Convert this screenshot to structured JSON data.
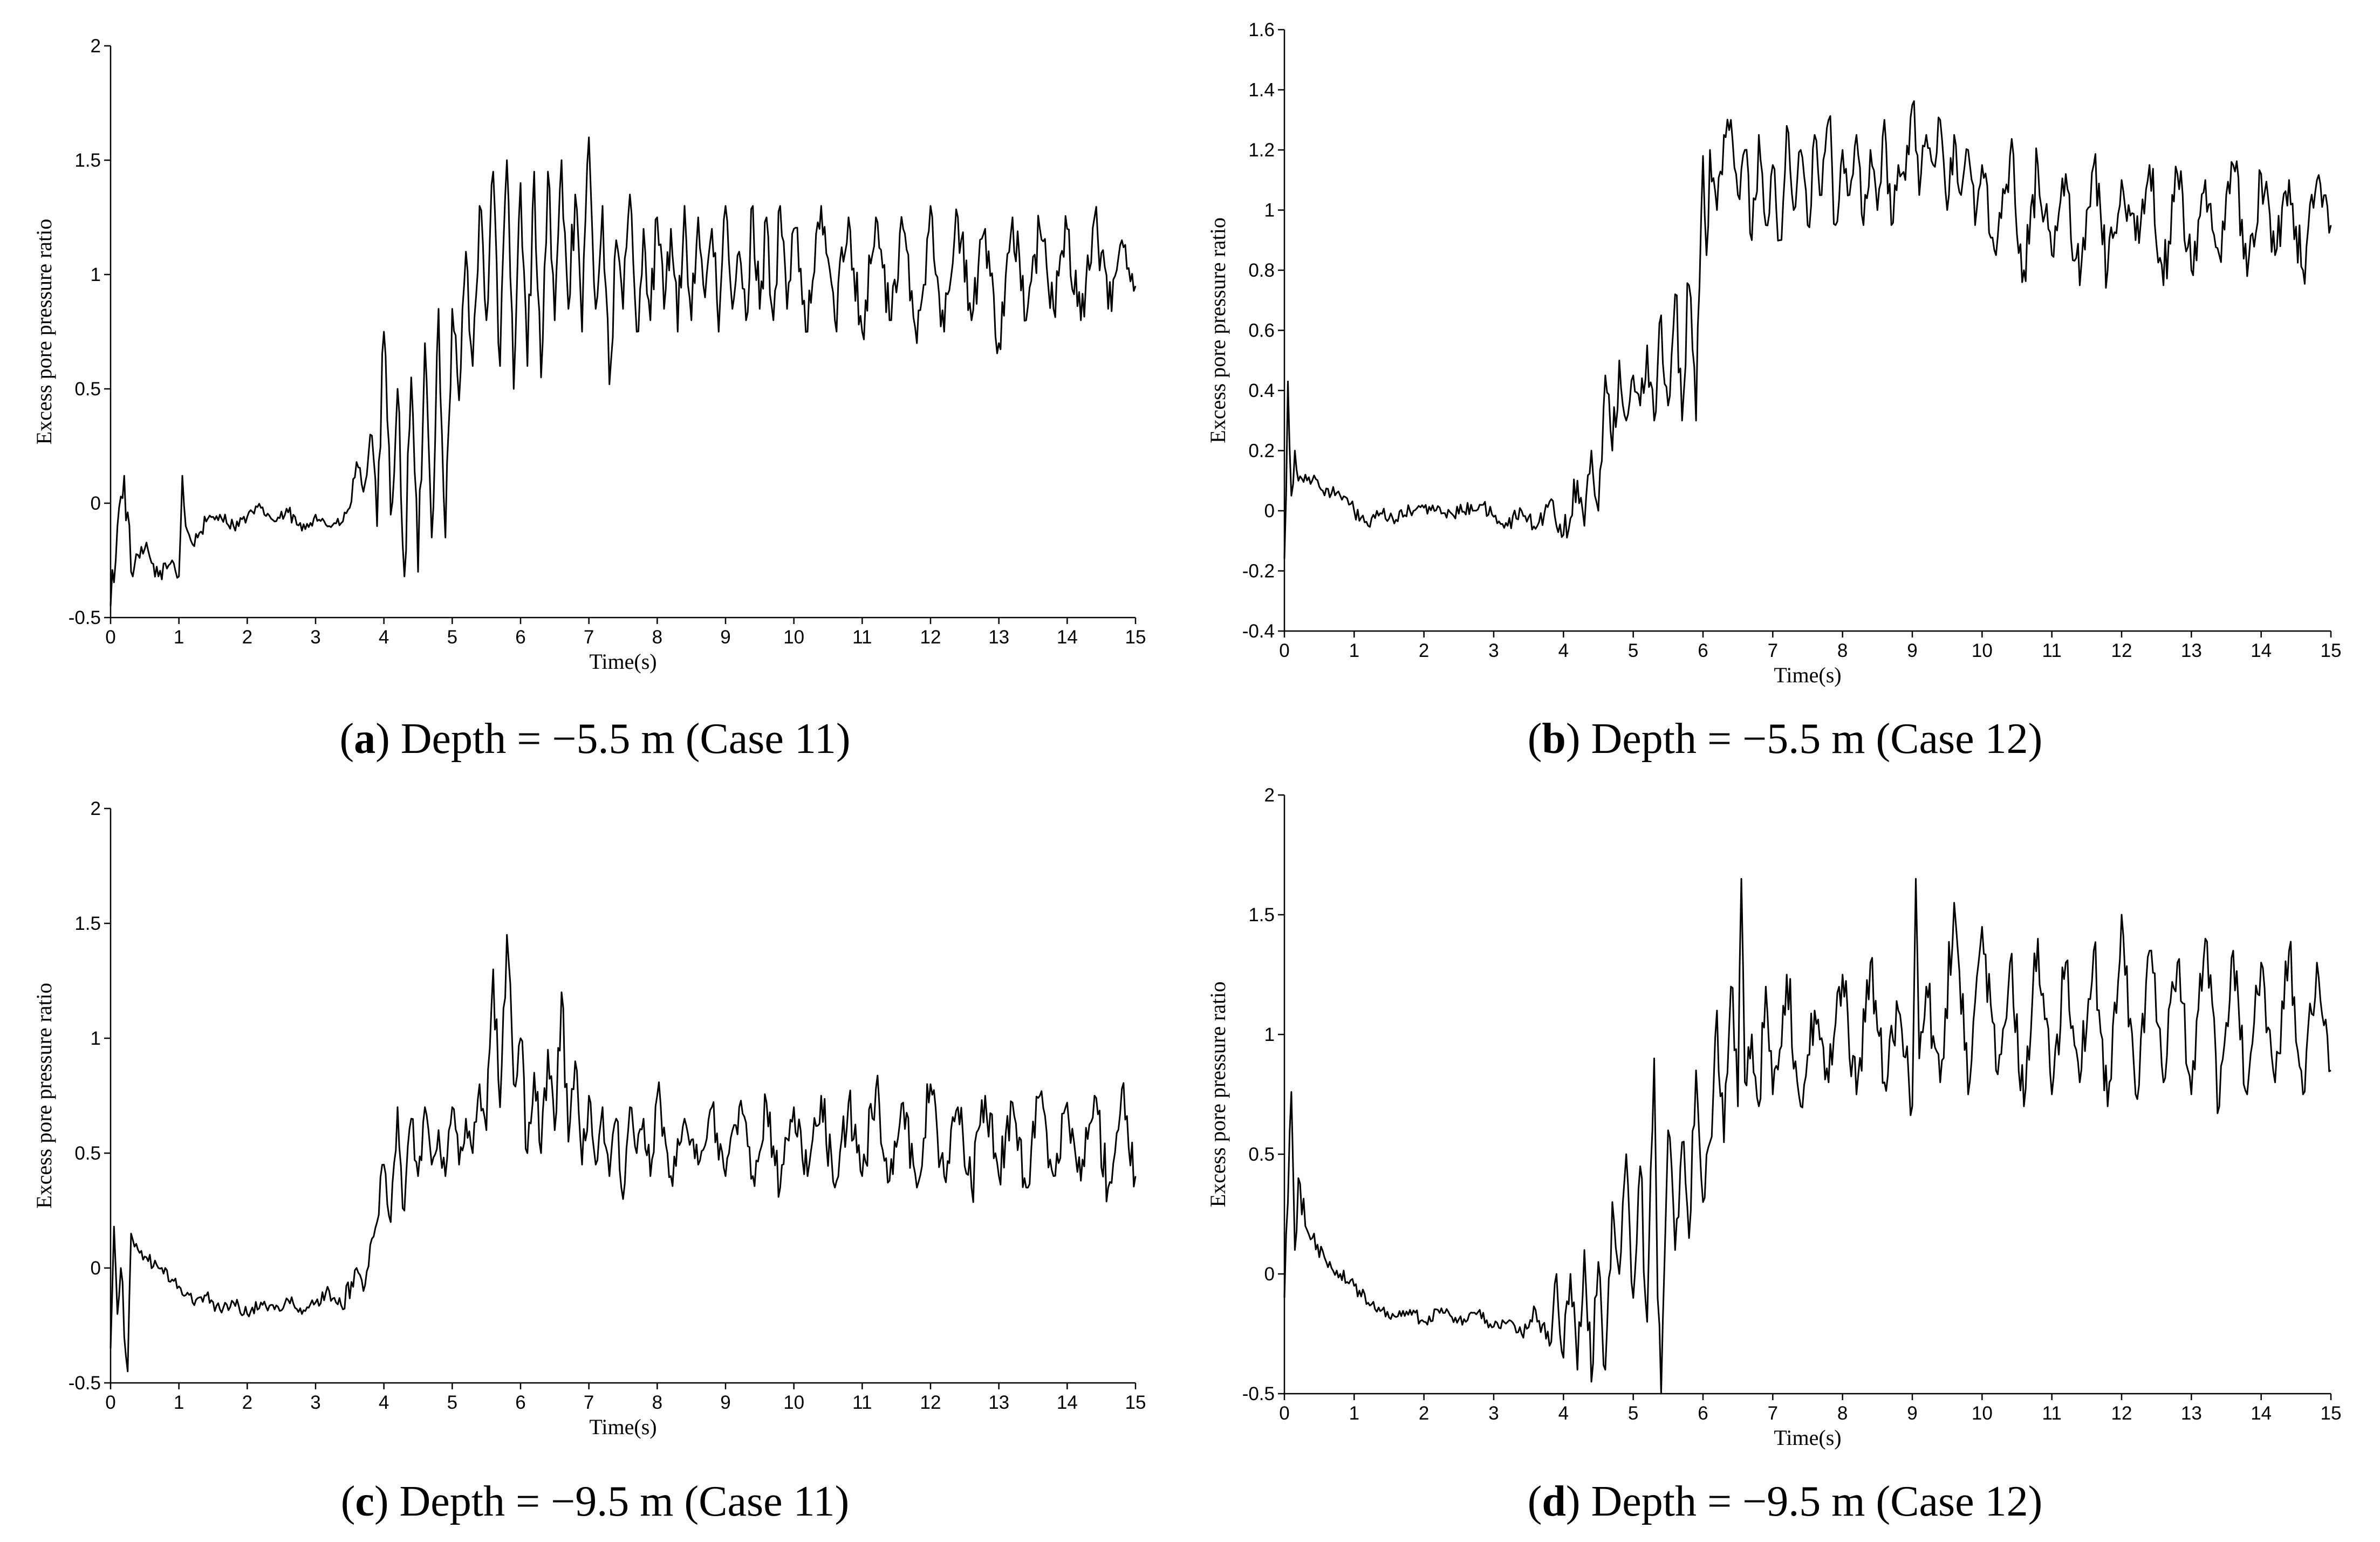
{
  "chart_data": [
    {
      "id": "a",
      "type": "line",
      "caption_letter": "a",
      "caption_text": "Depth = −5.5 m (Case 11)",
      "xlabel": "Time(s)",
      "ylabel": "Excess pore pressure ratio",
      "xlim": [
        0,
        15
      ],
      "ylim": [
        -0.5,
        2
      ],
      "xticks": [
        0,
        1,
        2,
        3,
        4,
        5,
        6,
        7,
        8,
        9,
        10,
        11,
        12,
        13,
        14,
        15
      ],
      "yticks": [
        -0.5,
        0,
        0.5,
        1,
        1.5,
        2
      ],
      "ytick_labels": [
        "-0.5",
        "0",
        "0.5",
        "1",
        "1.5",
        "2"
      ],
      "grid": false,
      "series": [
        {
          "name": "Excess pore pressure ratio",
          "color": "#000000",
          "x": [
            0,
            0.1,
            0.2,
            0.3,
            0.5,
            0.7,
            0.9,
            1.0,
            1.05,
            1.1,
            1.2,
            1.4,
            1.6,
            1.8,
            2.0,
            2.2,
            2.4,
            2.6,
            2.8,
            3.0,
            3.2,
            3.4,
            3.5,
            3.6,
            3.7,
            3.8,
            3.9,
            4.0,
            4.1,
            4.2,
            4.3,
            4.4,
            4.5,
            4.6,
            4.7,
            4.8,
            4.9,
            5.0,
            5.1,
            5.2,
            5.3,
            5.4,
            5.5,
            5.6,
            5.7,
            5.8,
            5.9,
            6.0,
            6.1,
            6.2,
            6.3,
            6.4,
            6.5,
            6.6,
            6.7,
            6.8,
            6.9,
            7.0,
            7.1,
            7.2,
            7.3,
            7.4,
            7.5,
            7.6,
            7.7,
            7.8,
            7.9,
            8.0,
            8.1,
            8.2,
            8.3,
            8.4,
            8.5,
            8.6,
            8.7,
            8.8,
            8.9,
            9.0,
            9.1,
            9.2,
            9.3,
            9.4,
            9.5,
            9.6,
            9.7,
            9.8,
            9.9,
            10.0,
            10.2,
            10.4,
            10.6,
            10.8,
            11.0,
            11.2,
            11.4,
            11.6,
            11.8,
            12.0,
            12.2,
            12.4,
            12.6,
            12.8,
            13.0,
            13.2,
            13.4,
            13.6,
            13.8,
            14.0,
            14.2,
            14.4,
            14.6,
            14.8,
            15.0
          ],
          "y": [
            -0.45,
            -0.1,
            0.12,
            -0.3,
            -0.2,
            -0.32,
            -0.25,
            -0.32,
            0.12,
            -0.1,
            -0.18,
            -0.08,
            -0.05,
            -0.1,
            -0.06,
            -0.02,
            -0.08,
            -0.04,
            -0.12,
            -0.05,
            -0.1,
            -0.08,
            -0.02,
            0.18,
            0.05,
            0.3,
            -0.1,
            0.75,
            -0.05,
            0.5,
            -0.32,
            0.55,
            -0.3,
            0.7,
            -0.15,
            0.85,
            -0.15,
            0.85,
            0.45,
            1.1,
            0.6,
            1.3,
            0.8,
            1.45,
            0.6,
            1.5,
            0.5,
            1.4,
            0.6,
            1.45,
            0.55,
            1.45,
            0.8,
            1.5,
            0.85,
            1.35,
            0.75,
            1.6,
            0.85,
            1.3,
            0.52,
            1.15,
            0.85,
            1.35,
            0.75,
            1.2,
            0.8,
            1.25,
            0.85,
            1.2,
            0.75,
            1.3,
            0.8,
            1.25,
            0.9,
            1.2,
            0.75,
            1.3,
            0.85,
            1.1,
            0.8,
            1.3,
            0.85,
            1.25,
            0.8,
            1.3,
            0.85,
            1.2,
            0.75,
            1.3,
            0.8,
            1.25,
            0.75,
            1.25,
            0.8,
            1.2,
            0.7,
            1.3,
            0.75,
            1.25,
            0.8,
            1.2,
            0.7,
            1.25,
            0.8,
            1.2,
            0.85,
            1.2,
            0.8,
            1.25,
            0.85,
            1.15,
            0.95
          ]
        }
      ]
    },
    {
      "id": "b",
      "type": "line",
      "caption_letter": "b",
      "caption_text": "Depth = −5.5 m (Case 12)",
      "xlabel": "Time(s)",
      "ylabel": "Excess pore pressure ratio",
      "xlim": [
        0,
        15
      ],
      "ylim": [
        -0.4,
        1.6
      ],
      "xticks": [
        0,
        1,
        2,
        3,
        4,
        5,
        6,
        7,
        8,
        9,
        10,
        11,
        12,
        13,
        14,
        15
      ],
      "yticks": [
        -0.4,
        -0.2,
        0,
        0.2,
        0.4,
        0.6,
        0.8,
        1,
        1.2,
        1.4,
        1.6
      ],
      "ytick_labels": [
        "-0.4",
        "-0.2",
        "0",
        "0.2",
        "0.4",
        "0.6",
        "0.8",
        "1",
        "1.2",
        "1.4",
        "1.6"
      ],
      "grid": false,
      "series": [
        {
          "name": "Excess pore pressure ratio",
          "color": "#000000",
          "x": [
            0,
            0.05,
            0.1,
            0.15,
            0.2,
            0.3,
            0.5,
            0.8,
            1.0,
            1.2,
            1.4,
            1.6,
            1.8,
            2.0,
            2.4,
            2.8,
            3.0,
            3.2,
            3.4,
            3.6,
            3.8,
            4.0,
            4.2,
            4.3,
            4.4,
            4.5,
            4.6,
            4.7,
            4.8,
            4.9,
            5.0,
            5.1,
            5.2,
            5.3,
            5.4,
            5.5,
            5.6,
            5.7,
            5.8,
            5.9,
            6.0,
            6.05,
            6.1,
            6.2,
            6.3,
            6.4,
            6.5,
            6.6,
            6.7,
            6.8,
            6.9,
            7.0,
            7.1,
            7.2,
            7.3,
            7.4,
            7.5,
            7.6,
            7.7,
            7.8,
            7.9,
            8.0,
            8.1,
            8.2,
            8.3,
            8.4,
            8.5,
            8.6,
            8.7,
            8.8,
            8.9,
            9.0,
            9.1,
            9.2,
            9.3,
            9.4,
            9.5,
            9.6,
            9.7,
            9.8,
            9.9,
            10.0,
            10.2,
            10.4,
            10.6,
            10.8,
            11.0,
            11.2,
            11.4,
            11.6,
            11.8,
            12.0,
            12.2,
            12.4,
            12.6,
            12.8,
            13.0,
            13.2,
            13.4,
            13.6,
            13.8,
            14.0,
            14.2,
            14.4,
            14.6,
            14.8,
            15.0
          ],
          "y": [
            -0.16,
            0.43,
            0.05,
            0.2,
            0.1,
            0.12,
            0.08,
            0.05,
            0.0,
            -0.05,
            -0.01,
            -0.03,
            0.0,
            0.01,
            -0.01,
            0.02,
            -0.02,
            -0.05,
            0.0,
            -0.06,
            0.03,
            -0.08,
            0.1,
            -0.05,
            0.2,
            0.0,
            0.45,
            0.2,
            0.5,
            0.3,
            0.45,
            0.35,
            0.55,
            0.3,
            0.65,
            0.35,
            0.72,
            0.3,
            0.75,
            0.3,
            1.18,
            0.85,
            1.2,
            1.0,
            1.25,
            1.3,
            1.05,
            1.2,
            0.9,
            1.25,
            0.95,
            1.15,
            0.9,
            1.28,
            1.0,
            1.2,
            0.95,
            1.25,
            1.05,
            1.3,
            0.95,
            1.2,
            1.05,
            1.25,
            0.95,
            1.2,
            1.0,
            1.3,
            0.95,
            1.15,
            1.1,
            1.35,
            1.05,
            1.25,
            1.15,
            1.3,
            1.0,
            1.25,
            1.05,
            1.2,
            0.95,
            1.15,
            0.85,
            1.18,
            0.8,
            1.15,
            0.85,
            1.12,
            0.75,
            1.15,
            0.8,
            1.1,
            0.9,
            1.15,
            0.75,
            1.12,
            0.8,
            1.1,
            0.85,
            1.15,
            0.78,
            1.12,
            0.85,
            1.1,
            0.8,
            1.1,
            0.95
          ]
        }
      ]
    },
    {
      "id": "c",
      "type": "line",
      "caption_letter": "c",
      "caption_text": "Depth = −9.5 m (Case 11)",
      "xlabel": "Time(s)",
      "ylabel": "Excess pore pressure ratio",
      "xlim": [
        0,
        15
      ],
      "ylim": [
        -0.5,
        2
      ],
      "xticks": [
        0,
        1,
        2,
        3,
        4,
        5,
        6,
        7,
        8,
        9,
        10,
        11,
        12,
        13,
        14,
        15
      ],
      "yticks": [
        -0.5,
        0,
        0.5,
        1,
        1.5,
        2
      ],
      "ytick_labels": [
        "-0.5",
        "0",
        "0.5",
        "1",
        "1.5",
        "2"
      ],
      "grid": false,
      "series": [
        {
          "name": "Excess pore pressure ratio",
          "color": "#000000",
          "x": [
            0,
            0.05,
            0.1,
            0.15,
            0.2,
            0.25,
            0.3,
            0.4,
            0.5,
            0.7,
            0.9,
            1.0,
            1.2,
            1.4,
            1.6,
            1.8,
            2.0,
            2.2,
            2.4,
            2.6,
            2.8,
            3.0,
            3.2,
            3.4,
            3.6,
            3.7,
            3.8,
            3.9,
            4.0,
            4.1,
            4.2,
            4.3,
            4.4,
            4.5,
            4.6,
            4.7,
            4.8,
            4.9,
            5.0,
            5.1,
            5.2,
            5.3,
            5.4,
            5.5,
            5.6,
            5.7,
            5.8,
            5.9,
            6.0,
            6.1,
            6.2,
            6.3,
            6.4,
            6.5,
            6.6,
            6.7,
            6.8,
            6.9,
            7.0,
            7.1,
            7.2,
            7.3,
            7.4,
            7.5,
            7.6,
            7.7,
            7.8,
            7.9,
            8.0,
            8.2,
            8.4,
            8.6,
            8.8,
            9.0,
            9.2,
            9.4,
            9.6,
            9.8,
            10.0,
            10.2,
            10.4,
            10.6,
            10.8,
            11.0,
            11.2,
            11.4,
            11.6,
            11.8,
            12.0,
            12.2,
            12.4,
            12.6,
            12.8,
            13.0,
            13.2,
            13.4,
            13.6,
            13.8,
            14.0,
            14.2,
            14.4,
            14.6,
            14.8,
            15.0
          ],
          "y": [
            -0.35,
            0.18,
            -0.2,
            0.0,
            -0.3,
            -0.45,
            0.15,
            0.08,
            0.05,
            0.0,
            -0.05,
            -0.08,
            -0.15,
            -0.12,
            -0.18,
            -0.15,
            -0.2,
            -0.15,
            -0.18,
            -0.14,
            -0.2,
            -0.15,
            -0.1,
            -0.18,
            0.0,
            -0.1,
            0.1,
            0.2,
            0.45,
            0.2,
            0.7,
            0.25,
            0.65,
            0.4,
            0.7,
            0.45,
            0.6,
            0.4,
            0.7,
            0.45,
            0.65,
            0.5,
            0.8,
            0.6,
            1.3,
            0.7,
            1.45,
            0.8,
            1.0,
            0.5,
            0.85,
            0.5,
            0.95,
            0.6,
            1.2,
            0.55,
            0.9,
            0.45,
            0.75,
            0.45,
            0.7,
            0.4,
            0.65,
            0.3,
            0.7,
            0.5,
            0.65,
            0.4,
            0.75,
            0.4,
            0.65,
            0.45,
            0.7,
            0.4,
            0.7,
            0.4,
            0.72,
            0.35,
            0.7,
            0.4,
            0.75,
            0.35,
            0.72,
            0.4,
            0.78,
            0.38,
            0.72,
            0.35,
            0.8,
            0.4,
            0.7,
            0.35,
            0.75,
            0.4,
            0.72,
            0.35,
            0.75,
            0.4,
            0.72,
            0.38,
            0.75,
            0.35,
            0.78,
            0.4
          ]
        }
      ]
    },
    {
      "id": "d",
      "type": "line",
      "caption_letter": "d",
      "caption_text": "Depth = −9.5 m (Case 12)",
      "xlabel": "Time(s)",
      "ylabel": "Excess pore pressure ratio",
      "xlim": [
        0,
        15
      ],
      "ylim": [
        -0.5,
        2
      ],
      "xticks": [
        0,
        1,
        2,
        3,
        4,
        5,
        6,
        7,
        8,
        9,
        10,
        11,
        12,
        13,
        14,
        15
      ],
      "yticks": [
        -0.5,
        0,
        0.5,
        1,
        1.5,
        2
      ],
      "ytick_labels": [
        "-0.5",
        "0",
        "0.5",
        "1",
        "1.5",
        "2"
      ],
      "grid": false,
      "series": [
        {
          "name": "Excess pore pressure ratio",
          "color": "#000000",
          "x": [
            0,
            0.05,
            0.1,
            0.15,
            0.2,
            0.3,
            0.4,
            0.6,
            0.8,
            1.0,
            1.2,
            1.4,
            1.6,
            1.8,
            2.0,
            2.2,
            2.4,
            2.6,
            2.8,
            3.0,
            3.2,
            3.4,
            3.6,
            3.8,
            3.9,
            4.0,
            4.1,
            4.2,
            4.3,
            4.4,
            4.5,
            4.6,
            4.7,
            4.8,
            4.9,
            5.0,
            5.1,
            5.2,
            5.3,
            5.35,
            5.4,
            5.5,
            5.6,
            5.7,
            5.8,
            5.9,
            6.0,
            6.1,
            6.2,
            6.3,
            6.4,
            6.5,
            6.55,
            6.6,
            6.7,
            6.8,
            6.9,
            7.0,
            7.2,
            7.4,
            7.6,
            7.8,
            8.0,
            8.2,
            8.4,
            8.6,
            8.8,
            9.0,
            9.05,
            9.1,
            9.2,
            9.4,
            9.6,
            9.8,
            10.0,
            10.2,
            10.4,
            10.6,
            10.8,
            11.0,
            11.2,
            11.4,
            11.6,
            11.8,
            12.0,
            12.2,
            12.4,
            12.6,
            12.8,
            13.0,
            13.2,
            13.4,
            13.6,
            13.8,
            14.0,
            14.2,
            14.4,
            14.6,
            14.8,
            15.0
          ],
          "y": [
            -0.1,
            0.3,
            0.76,
            0.1,
            0.4,
            0.2,
            0.15,
            0.05,
            0.0,
            -0.05,
            -0.12,
            -0.15,
            -0.18,
            -0.15,
            -0.2,
            -0.15,
            -0.18,
            -0.2,
            -0.15,
            -0.22,
            -0.2,
            -0.25,
            -0.15,
            -0.3,
            0.0,
            -0.35,
            0.0,
            -0.4,
            0.1,
            -0.45,
            0.05,
            -0.4,
            0.3,
            0.0,
            0.5,
            -0.1,
            0.45,
            -0.2,
            0.9,
            -0.1,
            -0.5,
            0.6,
            0.1,
            0.55,
            0.15,
            0.85,
            0.3,
            0.55,
            1.1,
            0.55,
            1.2,
            0.7,
            1.65,
            0.8,
            1.0,
            0.7,
            1.2,
            0.75,
            1.25,
            0.7,
            1.1,
            0.8,
            1.25,
            0.75,
            1.3,
            0.8,
            1.1,
            0.7,
            1.65,
            0.9,
            1.2,
            0.8,
            1.55,
            0.75,
            1.45,
            0.85,
            1.3,
            0.7,
            1.4,
            0.75,
            1.3,
            0.8,
            1.35,
            0.7,
            1.5,
            0.75,
            1.35,
            0.8,
            1.3,
            0.75,
            1.4,
            0.7,
            1.35,
            0.75,
            1.3,
            0.8,
            1.35,
            0.75,
            1.3,
            0.85
          ]
        }
      ]
    }
  ]
}
